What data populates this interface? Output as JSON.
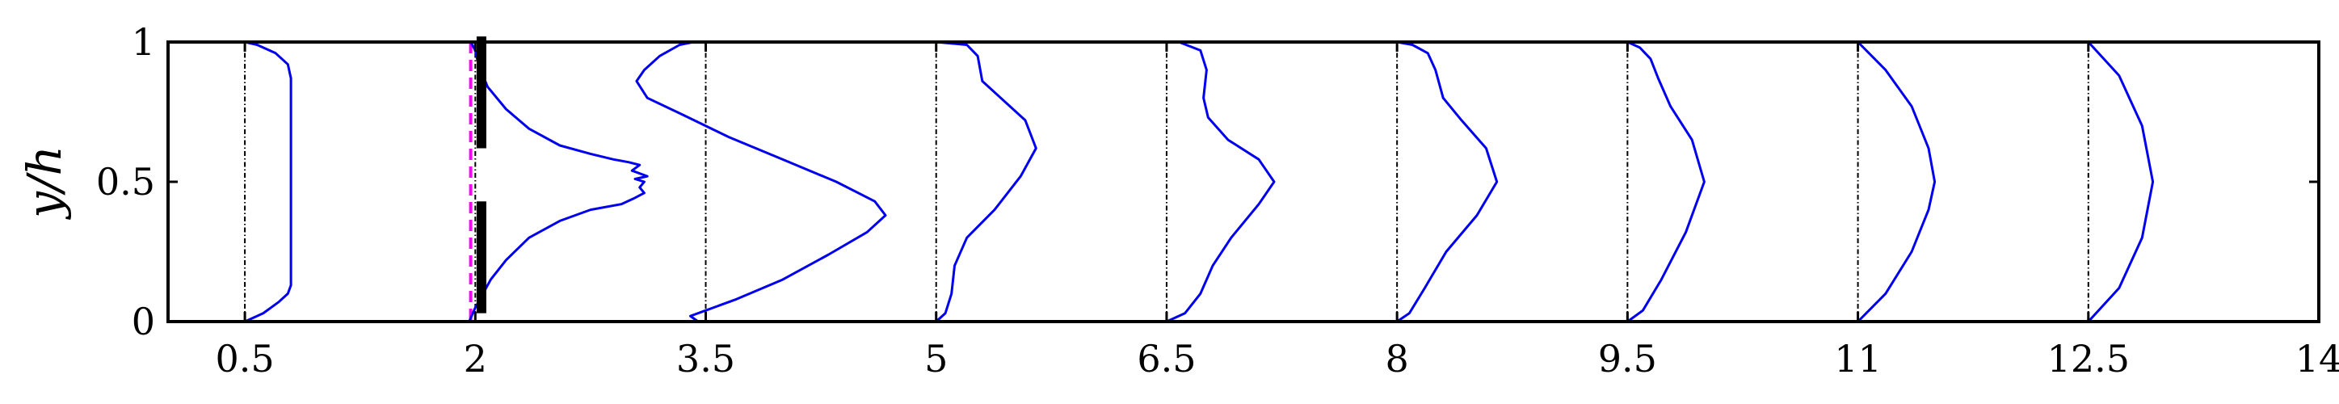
{
  "chart_data": {
    "type": "line",
    "title": "",
    "xlabel": "",
    "ylabel": "y/h",
    "xlim": [
      0,
      14
    ],
    "ylim": [
      0,
      1
    ],
    "x_ticks": [
      0.5,
      2,
      3.5,
      5,
      6.5,
      8,
      9.5,
      11,
      12.5,
      14
    ],
    "x_tick_labels": [
      "0.5",
      "2",
      "3.5",
      "5",
      "6.5",
      "8",
      "9.5",
      "11",
      "12.5",
      "14"
    ],
    "y_ticks": [
      0,
      0.5,
      1
    ],
    "y_tick_labels": [
      "0",
      "0.5",
      "1"
    ],
    "grid": false,
    "profile_color": "#0000ee",
    "baseline_color": "#000000",
    "dashed_line": {
      "x": 1.97,
      "color": "#ff00ff"
    },
    "wall_segments": [
      {
        "x": 2.04,
        "y0": 0.62,
        "y1": 1.02
      },
      {
        "x": 2.04,
        "y0": 0.03,
        "y1": 0.43
      }
    ],
    "series": [
      {
        "x0": 0.5,
        "points": [
          [
            0.5,
            0.0
          ],
          [
            0.62,
            0.03
          ],
          [
            0.72,
            0.07
          ],
          [
            0.78,
            0.1
          ],
          [
            0.8,
            0.13
          ],
          [
            0.8,
            0.5
          ],
          [
            0.8,
            0.87
          ],
          [
            0.78,
            0.92
          ],
          [
            0.7,
            0.96
          ],
          [
            0.58,
            0.99
          ],
          [
            0.5,
            1.0
          ]
        ]
      },
      {
        "x0": 2.0,
        "points": [
          [
            1.96,
            0.0
          ],
          [
            2.0,
            0.05
          ],
          [
            2.1,
            0.15
          ],
          [
            2.2,
            0.22
          ],
          [
            2.35,
            0.3
          ],
          [
            2.55,
            0.36
          ],
          [
            2.75,
            0.4
          ],
          [
            2.95,
            0.42
          ],
          [
            3.03,
            0.44
          ],
          [
            3.1,
            0.46
          ],
          [
            3.07,
            0.48
          ],
          [
            3.1,
            0.5
          ],
          [
            3.04,
            0.51
          ],
          [
            3.12,
            0.52
          ],
          [
            3.02,
            0.54
          ],
          [
            3.07,
            0.56
          ],
          [
            3.0,
            0.57
          ],
          [
            2.9,
            0.58
          ],
          [
            2.75,
            0.6
          ],
          [
            2.55,
            0.63
          ],
          [
            2.35,
            0.69
          ],
          [
            2.2,
            0.76
          ],
          [
            2.08,
            0.84
          ],
          [
            2.02,
            0.92
          ],
          [
            2.0,
            0.97
          ],
          [
            1.97,
            1.0
          ]
        ]
      },
      {
        "x0": 3.5,
        "points": [
          [
            3.45,
            0.0
          ],
          [
            3.4,
            0.02
          ],
          [
            3.5,
            0.04
          ],
          [
            3.7,
            0.08
          ],
          [
            4.0,
            0.15
          ],
          [
            4.3,
            0.24
          ],
          [
            4.55,
            0.32
          ],
          [
            4.67,
            0.38
          ],
          [
            4.6,
            0.43
          ],
          [
            4.35,
            0.5
          ],
          [
            4.0,
            0.58
          ],
          [
            3.65,
            0.66
          ],
          [
            3.35,
            0.74
          ],
          [
            3.12,
            0.8
          ],
          [
            3.05,
            0.86
          ],
          [
            3.1,
            0.9
          ],
          [
            3.2,
            0.95
          ],
          [
            3.33,
            0.99
          ],
          [
            3.42,
            1.0
          ]
        ]
      },
      {
        "x0": 5.0,
        "points": [
          [
            5.0,
            0.0
          ],
          [
            5.06,
            0.03
          ],
          [
            5.1,
            0.1
          ],
          [
            5.12,
            0.2
          ],
          [
            5.2,
            0.3
          ],
          [
            5.38,
            0.4
          ],
          [
            5.55,
            0.52
          ],
          [
            5.65,
            0.62
          ],
          [
            5.58,
            0.72
          ],
          [
            5.42,
            0.8
          ],
          [
            5.3,
            0.86
          ],
          [
            5.27,
            0.95
          ],
          [
            5.2,
            0.99
          ],
          [
            5.0,
            1.0
          ]
        ]
      },
      {
        "x0": 6.5,
        "points": [
          [
            6.5,
            0.0
          ],
          [
            6.62,
            0.03
          ],
          [
            6.72,
            0.1
          ],
          [
            6.8,
            0.2
          ],
          [
            6.92,
            0.3
          ],
          [
            7.1,
            0.42
          ],
          [
            7.2,
            0.5
          ],
          [
            7.1,
            0.58
          ],
          [
            6.9,
            0.65
          ],
          [
            6.77,
            0.73
          ],
          [
            6.74,
            0.8
          ],
          [
            6.76,
            0.9
          ],
          [
            6.72,
            0.97
          ],
          [
            6.58,
            1.0
          ]
        ]
      },
      {
        "x0": 8.0,
        "points": [
          [
            8.0,
            0.0
          ],
          [
            8.08,
            0.03
          ],
          [
            8.18,
            0.12
          ],
          [
            8.32,
            0.25
          ],
          [
            8.52,
            0.38
          ],
          [
            8.65,
            0.5
          ],
          [
            8.58,
            0.62
          ],
          [
            8.42,
            0.72
          ],
          [
            8.3,
            0.8
          ],
          [
            8.25,
            0.9
          ],
          [
            8.2,
            0.96
          ],
          [
            8.1,
            0.99
          ],
          [
            8.0,
            1.0
          ]
        ]
      },
      {
        "x0": 9.5,
        "points": [
          [
            9.5,
            0.0
          ],
          [
            9.6,
            0.04
          ],
          [
            9.72,
            0.15
          ],
          [
            9.88,
            0.32
          ],
          [
            10.0,
            0.5
          ],
          [
            9.92,
            0.65
          ],
          [
            9.78,
            0.77
          ],
          [
            9.7,
            0.87
          ],
          [
            9.65,
            0.94
          ],
          [
            9.58,
            0.98
          ],
          [
            9.5,
            1.0
          ]
        ]
      },
      {
        "x0": 11.0,
        "points": [
          [
            11.0,
            0.0
          ],
          [
            11.18,
            0.1
          ],
          [
            11.35,
            0.25
          ],
          [
            11.46,
            0.4
          ],
          [
            11.5,
            0.5
          ],
          [
            11.46,
            0.62
          ],
          [
            11.35,
            0.77
          ],
          [
            11.18,
            0.9
          ],
          [
            11.0,
            1.0
          ]
        ]
      },
      {
        "x0": 12.5,
        "points": [
          [
            12.5,
            0.0
          ],
          [
            12.7,
            0.12
          ],
          [
            12.85,
            0.3
          ],
          [
            12.92,
            0.5
          ],
          [
            12.85,
            0.7
          ],
          [
            12.7,
            0.88
          ],
          [
            12.5,
            1.0
          ]
        ]
      }
    ]
  }
}
